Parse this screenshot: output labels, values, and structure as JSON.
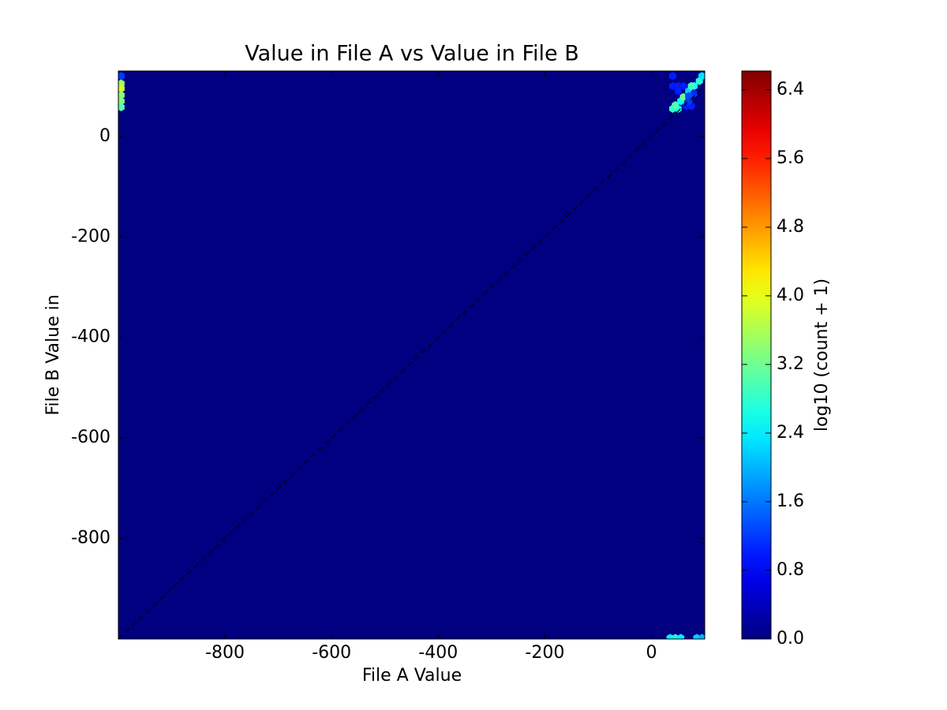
{
  "chart_data": {
    "type": "hexbin",
    "title": "Value in File A vs Value in File B",
    "x_label": "File A Value",
    "y_label": "File B Value in",
    "colorbar_label": "log10 (count + 1)",
    "colormap": "jet",
    "identity_line": true,
    "x": [
      -995,
      -995,
      -995,
      -995,
      -995,
      -995,
      40,
      40,
      50,
      60,
      50,
      40,
      50,
      45,
      55,
      60,
      70,
      80,
      90,
      95,
      75,
      65,
      75,
      70,
      80,
      70,
      35,
      45,
      55,
      85,
      95
    ],
    "y": [
      120,
      105,
      95,
      82,
      70,
      58,
      120,
      100,
      100,
      100,
      90,
      55,
      55,
      62,
      70,
      78,
      90,
      100,
      110,
      120,
      100,
      60,
      60,
      70,
      85,
      80,
      -998,
      -998,
      -998,
      -998,
      -998
    ],
    "values": [
      1.2,
      3.5,
      3.8,
      3.4,
      3.3,
      3.0,
      1.0,
      1.0,
      1.0,
      1.0,
      1.0,
      2.8,
      2.6,
      3.0,
      2.5,
      3.2,
      2.2,
      2.6,
      2.7,
      2.3,
      2.9,
      1.0,
      1.0,
      1.2,
      1.1,
      1.3,
      2.4,
      2.6,
      2.4,
      2.2,
      2.0
    ],
    "xlim": [
      -1000,
      100
    ],
    "ylim": [
      -1000,
      130
    ],
    "clim": [
      0,
      6.62
    ],
    "xticks": [
      -800,
      -600,
      -400,
      -200,
      0
    ],
    "yticks": [
      -800,
      -600,
      -400,
      -200,
      0
    ],
    "cticks": [
      {
        "value": 0,
        "label": "0.0"
      },
      {
        "value": 0.8,
        "label": "0.8"
      },
      {
        "value": 1.6,
        "label": "1.6"
      },
      {
        "value": 2.4,
        "label": "2.4"
      },
      {
        "value": 3.2,
        "label": "3.2"
      },
      {
        "value": 4.0,
        "label": "4.0"
      },
      {
        "value": 4.8,
        "label": "4.8"
      },
      {
        "value": 5.6,
        "label": "5.6"
      },
      {
        "value": 6.4,
        "label": "6.4"
      }
    ]
  }
}
